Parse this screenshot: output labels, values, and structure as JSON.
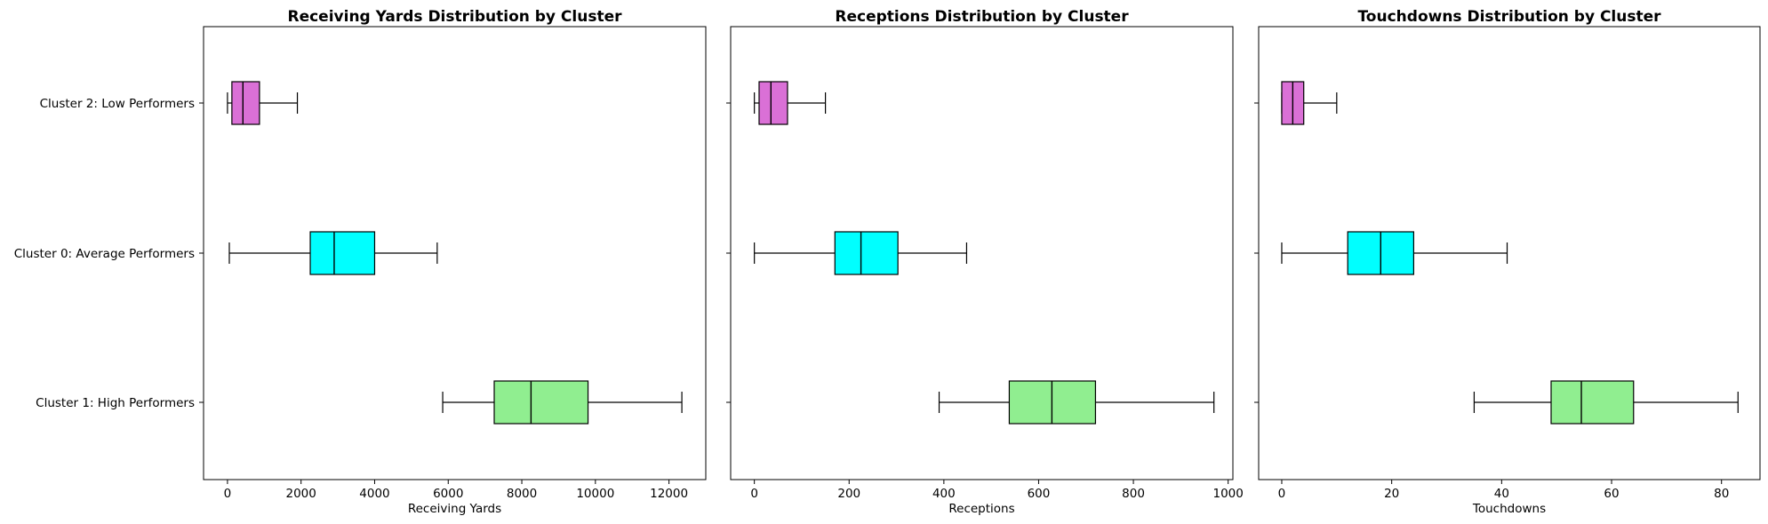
{
  "chart_data": [
    {
      "type": "boxplot",
      "orientation": "horizontal",
      "title": "Receiving Yards Distribution by Cluster",
      "xlabel": "Receiving Yards",
      "xlim": [
        -650,
        13000
      ],
      "xticks": [
        0,
        2000,
        4000,
        6000,
        8000,
        10000,
        12000
      ],
      "categories": [
        "Cluster 2: Low Performers",
        "Cluster 0: Average Performers",
        "Cluster 1: High Performers"
      ],
      "boxes": [
        {
          "name": "Cluster 2: Low Performers",
          "color": "#DA70D6",
          "whisker_low": 0,
          "q1": 120,
          "median": 420,
          "q3": 870,
          "whisker_high": 1900
        },
        {
          "name": "Cluster 0: Average Performers",
          "color": "#00FFFF",
          "whisker_low": 50,
          "q1": 2250,
          "median": 2900,
          "q3": 4000,
          "whisker_high": 5700
        },
        {
          "name": "Cluster 1: High Performers",
          "color": "#90EE90",
          "whisker_low": 5850,
          "q1": 7250,
          "median": 8250,
          "q3": 9800,
          "whisker_high": 12350
        }
      ]
    },
    {
      "type": "boxplot",
      "orientation": "horizontal",
      "title": "Receptions Distribution by Cluster",
      "xlabel": "Receptions",
      "xlim": [
        -50,
        1010
      ],
      "xticks": [
        0,
        200,
        400,
        600,
        800,
        1000
      ],
      "categories": [
        "Cluster 2: Low Performers",
        "Cluster 0: Average Performers",
        "Cluster 1: High Performers"
      ],
      "boxes": [
        {
          "name": "Cluster 2: Low Performers",
          "color": "#DA70D6",
          "whisker_low": 0,
          "q1": 10,
          "median": 35,
          "q3": 70,
          "whisker_high": 150
        },
        {
          "name": "Cluster 0: Average Performers",
          "color": "#00FFFF",
          "whisker_low": 0,
          "q1": 170,
          "median": 225,
          "q3": 303,
          "whisker_high": 448
        },
        {
          "name": "Cluster 1: High Performers",
          "color": "#90EE90",
          "whisker_low": 390,
          "q1": 538,
          "median": 628,
          "q3": 720,
          "whisker_high": 970
        }
      ]
    },
    {
      "type": "boxplot",
      "orientation": "horizontal",
      "title": "Touchdowns Distribution by Cluster",
      "xlabel": "Touchdowns",
      "xlim": [
        -4.2,
        87
      ],
      "xticks": [
        0,
        20,
        40,
        60,
        80
      ],
      "categories": [
        "Cluster 2: Low Performers",
        "Cluster 0: Average Performers",
        "Cluster 1: High Performers"
      ],
      "boxes": [
        {
          "name": "Cluster 2: Low Performers",
          "color": "#DA70D6",
          "whisker_low": 0,
          "q1": 0,
          "median": 2,
          "q3": 4,
          "whisker_high": 10
        },
        {
          "name": "Cluster 0: Average Performers",
          "color": "#00FFFF",
          "whisker_low": 0,
          "q1": 12,
          "median": 18,
          "q3": 24,
          "whisker_high": 41
        },
        {
          "name": "Cluster 1: High Performers",
          "color": "#90EE90",
          "whisker_low": 35,
          "q1": 49,
          "median": 54.5,
          "q3": 64,
          "whisker_high": 83
        }
      ]
    }
  ]
}
